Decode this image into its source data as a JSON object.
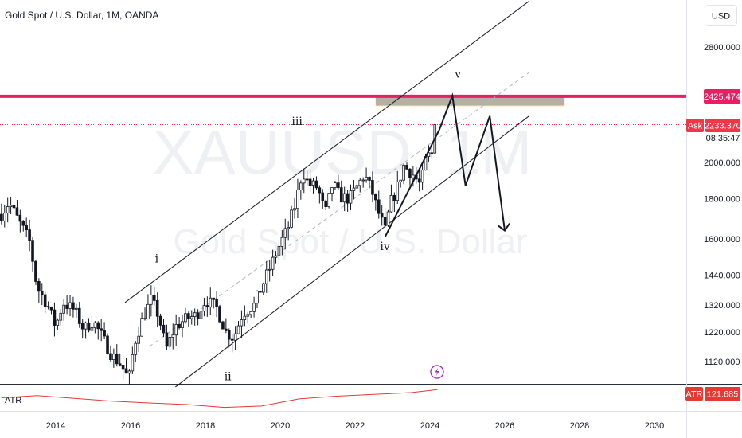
{
  "header": {
    "title": "Gold Spot / U.S. Dollar, 1M, OANDA",
    "currency_button": "USD"
  },
  "watermark": {
    "symbol": "XAUUSD, 1M",
    "name": "Gold Spot / U.S. Dollar"
  },
  "price_tags": {
    "resistance": "2425.474",
    "ask_label": "Ask",
    "ask_price": "2233.370",
    "countdown": "08:35:47",
    "atr_label": "ATR",
    "atr_value": "121.685"
  },
  "indicator_pane": {
    "label": "ATR"
  },
  "colors": {
    "resistance": "#e91e63",
    "ask": "#f23645",
    "candle_up": "#ffffff",
    "candle_down": "#131722",
    "atr_line": "#e53935",
    "zone": "#b4b0a4",
    "zone_border": "#f0d44a",
    "lightning": "#9c27b0"
  },
  "chart_data": {
    "type": "candlestick",
    "symbol": "XAUUSD",
    "timeframe": "1M",
    "y_axis_ticks": [
      2800,
      2000,
      1800,
      1600,
      1440,
      1320,
      1220,
      1120
    ],
    "y_axis_labels": [
      "2800.000",
      "2000.000",
      "1800.000",
      "1600.000",
      "1440.000",
      "1320.000",
      "1220.000",
      "1120.000"
    ],
    "x_axis_ticks": [
      2014,
      2016,
      2018,
      2020,
      2022,
      2024,
      2026,
      2028,
      2030
    ],
    "x_axis_labels": [
      "2014",
      "2016",
      "2018",
      "2020",
      "2022",
      "2024",
      "2026",
      "2028",
      "2030"
    ],
    "price_path": [
      [
        2012.55,
        1720
      ],
      [
        2012.75,
        1780
      ],
      [
        2013.0,
        1690
      ],
      [
        2013.3,
        1590
      ],
      [
        2013.5,
        1390
      ],
      [
        2013.75,
        1330
      ],
      [
        2014.0,
        1240
      ],
      [
        2014.2,
        1330
      ],
      [
        2014.5,
        1300
      ],
      [
        2014.75,
        1230
      ],
      [
        2015.0,
        1260
      ],
      [
        2015.25,
        1200
      ],
      [
        2015.5,
        1140
      ],
      [
        2015.75,
        1110
      ],
      [
        2015.95,
        1060
      ],
      [
        2016.1,
        1180
      ],
      [
        2016.3,
        1260
      ],
      [
        2016.55,
        1340
      ],
      [
        2016.75,
        1280
      ],
      [
        2016.95,
        1160
      ],
      [
        2017.2,
        1240
      ],
      [
        2017.5,
        1270
      ],
      [
        2017.75,
        1280
      ],
      [
        2018.0,
        1340
      ],
      [
        2018.3,
        1310
      ],
      [
        2018.55,
        1220
      ],
      [
        2018.75,
        1200
      ],
      [
        2019.0,
        1290
      ],
      [
        2019.3,
        1320
      ],
      [
        2019.55,
        1410
      ],
      [
        2019.75,
        1480
      ],
      [
        2020.0,
        1580
      ],
      [
        2020.2,
        1650
      ],
      [
        2020.4,
        1770
      ],
      [
        2020.6,
        1950
      ],
      [
        2020.75,
        1880
      ],
      [
        2021.0,
        1860
      ],
      [
        2021.2,
        1720
      ],
      [
        2021.4,
        1880
      ],
      [
        2021.6,
        1810
      ],
      [
        2021.85,
        1800
      ],
      [
        2022.1,
        1880
      ],
      [
        2022.25,
        1930
      ],
      [
        2022.45,
        1840
      ],
      [
        2022.6,
        1740
      ],
      [
        2022.8,
        1640
      ],
      [
        2022.95,
        1780
      ],
      [
        2023.1,
        1840
      ],
      [
        2023.3,
        1980
      ],
      [
        2023.55,
        1930
      ],
      [
        2023.75,
        1870
      ],
      [
        2023.9,
        2030
      ],
      [
        2024.1,
        2060
      ],
      [
        2024.2,
        2233.37
      ]
    ],
    "resistance_level": 2425.474,
    "ask_price": 2233.37,
    "wave_labels": [
      {
        "label": "i",
        "x": 2016.7,
        "y": 1495
      },
      {
        "label": "ii",
        "x": 2018.6,
        "y": 1060
      },
      {
        "label": "iii",
        "x": 2020.45,
        "y": 2230
      },
      {
        "label": "iv",
        "x": 2022.8,
        "y": 1550
      },
      {
        "label": "v",
        "x": 2024.75,
        "y": 2560
      }
    ],
    "channel": {
      "upper": [
        [
          2015.85,
          1330
        ],
        [
          2026.65,
          3200
        ]
      ],
      "lower": [
        [
          2017.2,
          1040
        ],
        [
          2026.65,
          2290
        ]
      ],
      "mid": [
        [
          2016.5,
          1170
        ],
        [
          2026.65,
          2600
        ]
      ]
    },
    "projection_path": [
      [
        2022.8,
        1610
      ],
      [
        2024.25,
        2200
      ],
      [
        2024.6,
        2430
      ],
      [
        2024.95,
        1870
      ],
      [
        2025.6,
        2290
      ],
      [
        2026.0,
        1640
      ]
    ],
    "target_zone": {
      "x_start": 2022.55,
      "x_end": 2027.6,
      "y_top": 2425.474,
      "y_bottom": 2360
    },
    "atr_indicator": {
      "name": "ATR",
      "last_value": 121.685,
      "path": [
        [
          2012.55,
          85
        ],
        [
          2013.5,
          95
        ],
        [
          2014.5,
          82
        ],
        [
          2015.5,
          70
        ],
        [
          2016.5,
          62
        ],
        [
          2017.5,
          55
        ],
        [
          2018.5,
          42
        ],
        [
          2019.5,
          48
        ],
        [
          2020.5,
          80
        ],
        [
          2021.5,
          92
        ],
        [
          2022.5,
          100
        ],
        [
          2023.5,
          108
        ],
        [
          2024.2,
          121.685
        ]
      ]
    }
  }
}
